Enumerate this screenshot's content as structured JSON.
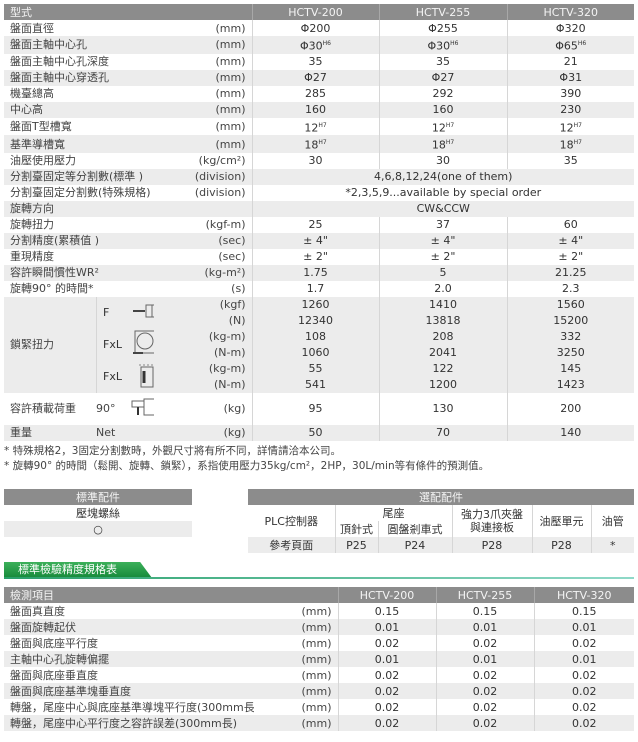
{
  "spec": {
    "header": {
      "label": "型式",
      "models": [
        "HCTV-200",
        "HCTV-255",
        "HCTV-320"
      ]
    },
    "rows": [
      {
        "label": "盤面直徑",
        "unit": "(mm)",
        "values": [
          "Φ200",
          "Φ255",
          "Φ320"
        ]
      },
      {
        "label": "盤面主軸中心孔",
        "unit": "(mm)",
        "values": [
          "Φ30",
          "Φ30",
          "Φ65"
        ],
        "sup": "H6"
      },
      {
        "label": "盤面主軸中心孔深度",
        "unit": "(mm)",
        "values": [
          "35",
          "35",
          "21"
        ]
      },
      {
        "label": "盤面主軸中心穿透孔",
        "unit": "(mm)",
        "values": [
          "Φ27",
          "Φ27",
          "Φ31"
        ]
      },
      {
        "label": "機臺總高",
        "unit": "(mm)",
        "values": [
          "285",
          "292",
          "390"
        ]
      },
      {
        "label": "中心高",
        "unit": "(mm)",
        "values": [
          "160",
          "160",
          "230"
        ]
      },
      {
        "label": "盤面T型槽寬",
        "unit": "(mm)",
        "values": [
          "12",
          "12",
          "12"
        ],
        "sup": "H7"
      },
      {
        "label": "基準導槽寬",
        "unit": "(mm)",
        "values": [
          "18",
          "18",
          "18"
        ],
        "sup": "H7"
      },
      {
        "label": "油壓使用壓力",
        "unit": "(kg/cm²)",
        "values": [
          "30",
          "30",
          "35"
        ]
      },
      {
        "label": "分割臺固定等分割數(標準 )",
        "unit": "(division)",
        "span": "4,6,8,12,24(one of them)"
      },
      {
        "label": "分割臺固定分割數(特殊規格)",
        "unit": "(division)",
        "span": "*2,3,5,9...available by special order"
      },
      {
        "label": "旋轉方向",
        "unit": "",
        "span": "CW&CCW"
      },
      {
        "label": "旋轉扭力",
        "unit": "(kgf-m)",
        "values": [
          "25",
          "37",
          "60"
        ]
      },
      {
        "label": "分割精度(累積值 )",
        "unit": "(sec)",
        "values": [
          "± 4\"",
          "± 4\"",
          "± 4\""
        ]
      },
      {
        "label": "重現精度",
        "unit": "(sec)",
        "values": [
          "± 2\"",
          "± 2\"",
          "± 2\""
        ]
      },
      {
        "label": "容許瞬間慣性WR²",
        "unit": "(kg-m²)",
        "values": [
          "1.75",
          "5",
          "21.25"
        ]
      },
      {
        "label": "旋轉90° 的時間*",
        "unit": "(s)",
        "values": [
          "1.7",
          "2.0",
          "2.3"
        ]
      }
    ],
    "clamp": {
      "label": "鎖緊扭力",
      "groups": [
        {
          "type": "F",
          "icon": "axial-force-diagram-icon",
          "rows": [
            {
              "unit": "(kgf)",
              "values": [
                "1260",
                "1410",
                "1560"
              ]
            },
            {
              "unit": "(N)",
              "values": [
                "12340",
                "13818",
                "15200"
              ]
            }
          ]
        },
        {
          "type": "FxL",
          "icon": "tangential-torque-diagram-icon",
          "rows": [
            {
              "unit": "(kg-m)",
              "values": [
                "108",
                "208",
                "332"
              ]
            },
            {
              "unit": "(N-m)",
              "values": [
                "1060",
                "2041",
                "3250"
              ]
            }
          ]
        },
        {
          "type": "FxL",
          "icon": "vertical-torque-diagram-icon",
          "rows": [
            {
              "unit": "(kg-m)",
              "values": [
                "55",
                "122",
                "145"
              ]
            },
            {
              "unit": "(N-m)",
              "values": [
                "541",
                "1200",
                "1423"
              ]
            }
          ]
        }
      ]
    },
    "load": {
      "label": "容許積載荷重",
      "type": "90°",
      "icon": "load-diagram-icon",
      "unit": "(kg)",
      "values": [
        "95",
        "130",
        "200"
      ]
    },
    "weight": {
      "label": "重量",
      "type": "Net",
      "unit": "(kg)",
      "values": [
        "50",
        "70",
        "140"
      ]
    }
  },
  "notes": [
    "* 特殊規格2，3固定分割數時，外觀尺寸將有所不同，詳情請洽本公司。",
    "* 旋轉90° 的時間（鬆開、旋轉、鎖緊），系指使用壓力35kg/cm²，2HP，30L/min等有條件的預測值。"
  ],
  "standard_accessories": {
    "title": "標準配件",
    "item": "壓塊螺絲",
    "mark": "○"
  },
  "optional_accessories": {
    "title": "選配配件",
    "plc": "PLC控制器",
    "tailstock": "尾座",
    "tail_a": "頂針式",
    "tail_b": "圓盤剎車式",
    "chuck": "強力3爪夾盤\n與連接板",
    "hydraulic": "油壓單元",
    "hose": "油管",
    "ref_label": "參考頁面",
    "refs": [
      "P25",
      "P24",
      "P28",
      "P28",
      "*"
    ]
  },
  "inspection": {
    "section_title": "標準檢驗精度規格表",
    "header": {
      "label": "檢測項目",
      "models": [
        "HCTV-200",
        "HCTV-255",
        "HCTV-320"
      ]
    },
    "rows": [
      {
        "label": "盤面真直度",
        "unit": "(mm)",
        "values": [
          "0.15",
          "0.15",
          "0.15"
        ]
      },
      {
        "label": "盤面旋轉起伏",
        "unit": "(mm)",
        "values": [
          "0.01",
          "0.01",
          "0.01"
        ]
      },
      {
        "label": "盤面與底座平行度",
        "unit": "(mm)",
        "values": [
          "0.02",
          "0.02",
          "0.02"
        ]
      },
      {
        "label": "主軸中心孔旋轉偏擺",
        "unit": "(mm)",
        "values": [
          "0.01",
          "0.01",
          "0.01"
        ]
      },
      {
        "label": "盤面與底座垂直度",
        "unit": "(mm)",
        "values": [
          "0.02",
          "0.02",
          "0.02"
        ]
      },
      {
        "label": "盤面與底座基準塊垂直度",
        "unit": "(mm)",
        "values": [
          "0.02",
          "0.02",
          "0.02"
        ]
      },
      {
        "label": "轉盤，尾座中心與底座基準導塊平行度(300mm長)",
        "unit": "(mm)",
        "values": [
          "0.02",
          "0.02",
          "0.02"
        ]
      },
      {
        "label": "轉盤，尾座中心平行度之容許誤差(300mm長)",
        "unit": "(mm)",
        "values": [
          "0.02",
          "0.02",
          "0.02"
        ]
      }
    ]
  }
}
